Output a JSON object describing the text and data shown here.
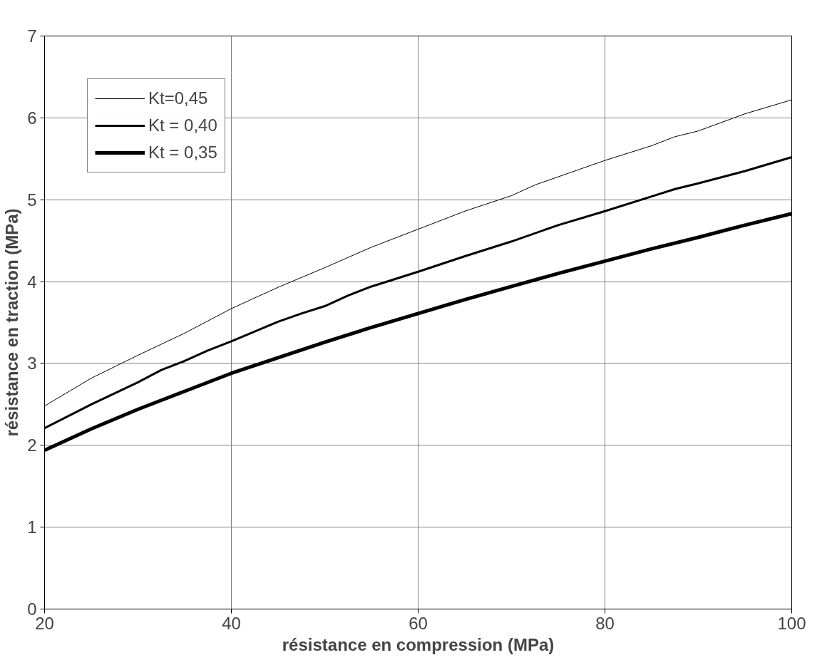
{
  "chart_data": {
    "type": "line",
    "xlabel": "résistance en compression (MPa)",
    "ylabel": "résistance en traction (MPa)",
    "xlim": [
      20,
      100
    ],
    "ylim": [
      0,
      7
    ],
    "xticks": [
      20,
      40,
      60,
      80,
      100
    ],
    "yticks": [
      0,
      1,
      2,
      3,
      4,
      5,
      6,
      7
    ],
    "grid": true,
    "legend": "top left",
    "line_style": "solid",
    "series": [
      {
        "name": "Kt=0,45",
        "color": "#000000",
        "x": [
          20,
          25,
          30,
          35,
          40,
          45,
          50,
          55,
          60,
          65,
          70,
          72.5,
          75,
          80,
          85,
          87.5,
          90,
          95,
          100
        ],
        "values": [
          2.48,
          2.82,
          3.1,
          3.37,
          3.67,
          3.93,
          4.17,
          4.42,
          4.64,
          4.86,
          5.05,
          5.18,
          5.28,
          5.48,
          5.66,
          5.77,
          5.84,
          6.05,
          6.22
        ]
      },
      {
        "name": "Kt = 0,40",
        "color": "#000000",
        "x": [
          20,
          25,
          30,
          32.5,
          35,
          37.5,
          40,
          45,
          47.5,
          50,
          52.5,
          55,
          60,
          65,
          70,
          75,
          80,
          85,
          87.5,
          90,
          95,
          100
        ],
        "values": [
          2.21,
          2.5,
          2.77,
          2.92,
          3.03,
          3.16,
          3.27,
          3.51,
          3.61,
          3.7,
          3.83,
          3.94,
          4.12,
          4.31,
          4.49,
          4.69,
          4.86,
          5.04,
          5.13,
          5.2,
          5.35,
          5.52
        ]
      },
      {
        "name": "Kt = 0,35",
        "color": "#000000",
        "x": [
          20,
          25,
          30,
          35,
          40,
          45,
          50,
          55,
          60,
          65,
          70,
          75,
          80,
          85,
          90,
          95,
          100
        ],
        "values": [
          1.94,
          2.2,
          2.44,
          2.66,
          2.88,
          3.07,
          3.26,
          3.44,
          3.61,
          3.78,
          3.94,
          4.1,
          4.25,
          4.4,
          4.54,
          4.69,
          4.83
        ]
      }
    ]
  }
}
